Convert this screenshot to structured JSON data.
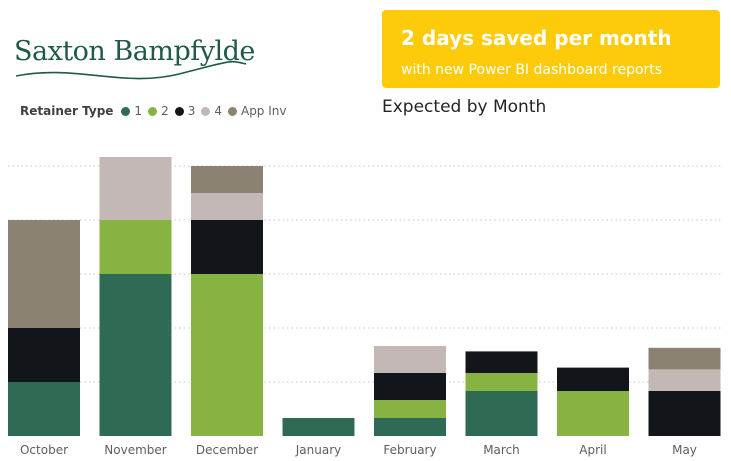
{
  "logo": {
    "text": "Saxton Bampfylde"
  },
  "banner": {
    "title": "2 days saved per month",
    "subtitle": "with new Power BI dashboard reports",
    "color": "#fdcb0a"
  },
  "legend": {
    "title": "Retainer Type",
    "items": [
      {
        "label": "1",
        "color": "#2f6b54"
      },
      {
        "label": "2",
        "color": "#86b342"
      },
      {
        "label": "3",
        "color": "#12161b"
      },
      {
        "label": "4",
        "color": "#c3b8b5"
      },
      {
        "label": "App Inv",
        "color": "#8b8273"
      }
    ]
  },
  "chart_title": "Expected by Month",
  "chart_data": {
    "type": "bar",
    "stacked": true,
    "title": "Expected by Month",
    "xlabel": "",
    "ylabel": "",
    "ylim": [
      0,
      15
    ],
    "grid": true,
    "legend_position": "top-left",
    "categories": [
      "October",
      "November",
      "December",
      "January",
      "February",
      "March",
      "April",
      "May"
    ],
    "series": [
      {
        "name": "1",
        "color": "#2f6b54",
        "values": [
          3,
          9,
          0,
          1,
          1,
          2.5,
          0,
          0
        ]
      },
      {
        "name": "2",
        "color": "#86b342",
        "values": [
          0,
          3,
          9,
          0,
          1,
          1,
          2.5,
          0
        ]
      },
      {
        "name": "3",
        "color": "#12161b",
        "values": [
          3,
          0,
          3,
          0,
          1.5,
          1.2,
          1.3,
          2.5
        ]
      },
      {
        "name": "4",
        "color": "#c3b8b5",
        "values": [
          0,
          3.5,
          1.5,
          0,
          1.5,
          0,
          0,
          1.2
        ]
      },
      {
        "name": "App Inv",
        "color": "#8b8273",
        "values": [
          6,
          0,
          1.5,
          0,
          0,
          0,
          0,
          1.2
        ]
      }
    ]
  }
}
